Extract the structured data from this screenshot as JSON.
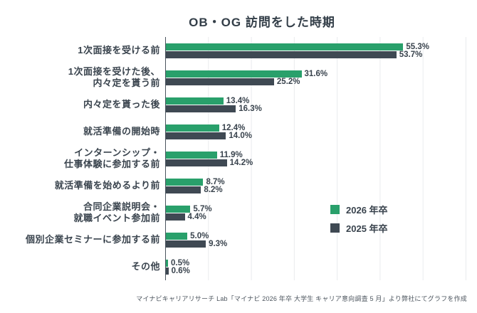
{
  "title": "OB・OG 訪問をした時期",
  "footer": "マイナビキャリアリサーチ Lab「マイナビ 2026 年卒 大学生 キャリア意向調査 5 月」より弊社にてグラフを作成",
  "colors": {
    "background": "#ffffff",
    "title_text": "#333E48",
    "label_text": "#3A444E",
    "value_text": "#39434D",
    "axis_line": "#4A545E",
    "gridline": "#e9ebee",
    "footer_text": "#4C555E"
  },
  "chart_data": {
    "type": "bar",
    "orientation": "horizontal",
    "title": "OB・OG 訪問をした時期",
    "xlabel": "",
    "ylabel": "",
    "xlim": [
      0,
      70
    ],
    "grid": true,
    "grid_interval": 10,
    "value_suffix": "%",
    "legend_position": "right-middle",
    "categories": [
      [
        "1次面接を受ける前"
      ],
      [
        "1次面接を受けた後、",
        "内々定を貰う前"
      ],
      [
        "内々定を貰った後"
      ],
      [
        "就活準備の開始時"
      ],
      [
        "インターンシップ・",
        "仕事体験に参加する前"
      ],
      [
        "就活準備を始めるより前"
      ],
      [
        "合同企業説明会・",
        "就職イベント参加前"
      ],
      [
        "個別企業セミナーに参加する前"
      ],
      [
        "その他"
      ]
    ],
    "series": [
      {
        "key": "2026",
        "name": "2026 年卒",
        "color": "#29A06B",
        "values": [
          55.3,
          31.6,
          13.4,
          12.4,
          11.9,
          8.7,
          5.7,
          5.0,
          0.5
        ]
      },
      {
        "key": "2025",
        "name": "2025 年卒",
        "color": "#3F4953",
        "values": [
          53.7,
          25.2,
          16.3,
          14.0,
          14.2,
          8.2,
          4.4,
          9.3,
          0.6
        ]
      }
    ]
  }
}
